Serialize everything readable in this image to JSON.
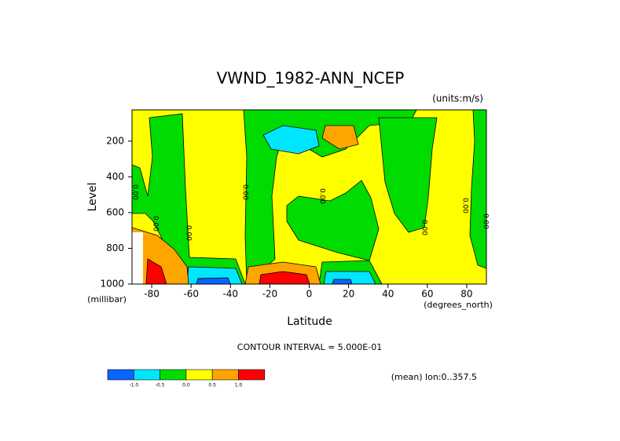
{
  "chart_data": {
    "type": "contour",
    "title": "VWND_1982-ANN_NCEP",
    "units": "(units:m/s)",
    "x_label": "Latitude",
    "x_unit": "(degrees_north)",
    "y_label": "Level",
    "y_unit": "(millibar)",
    "xlim": [
      -90,
      90
    ],
    "xticks": [
      -80,
      -60,
      -40,
      -20,
      0,
      20,
      40,
      60,
      80
    ],
    "ylim": [
      1000,
      25
    ],
    "yticks": [
      200,
      400,
      600,
      800,
      1000
    ],
    "contour_interval": "CONTOUR INTERVAL = 5.000E-01",
    "footnote": "(mean) lon:0..357.5",
    "contour_labels": [
      "0.00",
      "0.00",
      "0.00",
      "0.00",
      "0.00",
      "0.00",
      "0.00",
      "0.00"
    ],
    "colorbar": {
      "colors": [
        "#0a64ff",
        "#00e6ff",
        "#00dc00",
        "#ffff00",
        "#ffa500",
        "#ff0000"
      ],
      "levels": [
        {
          "value": -1,
          "label": "-1.0"
        },
        {
          "value": -0.5,
          "label": "-0.5"
        },
        {
          "value": 0,
          "label": "0.0"
        },
        {
          "value": 0.5,
          "label": "0.5"
        },
        {
          "value": 1,
          "label": "1.0"
        }
      ]
    }
  }
}
